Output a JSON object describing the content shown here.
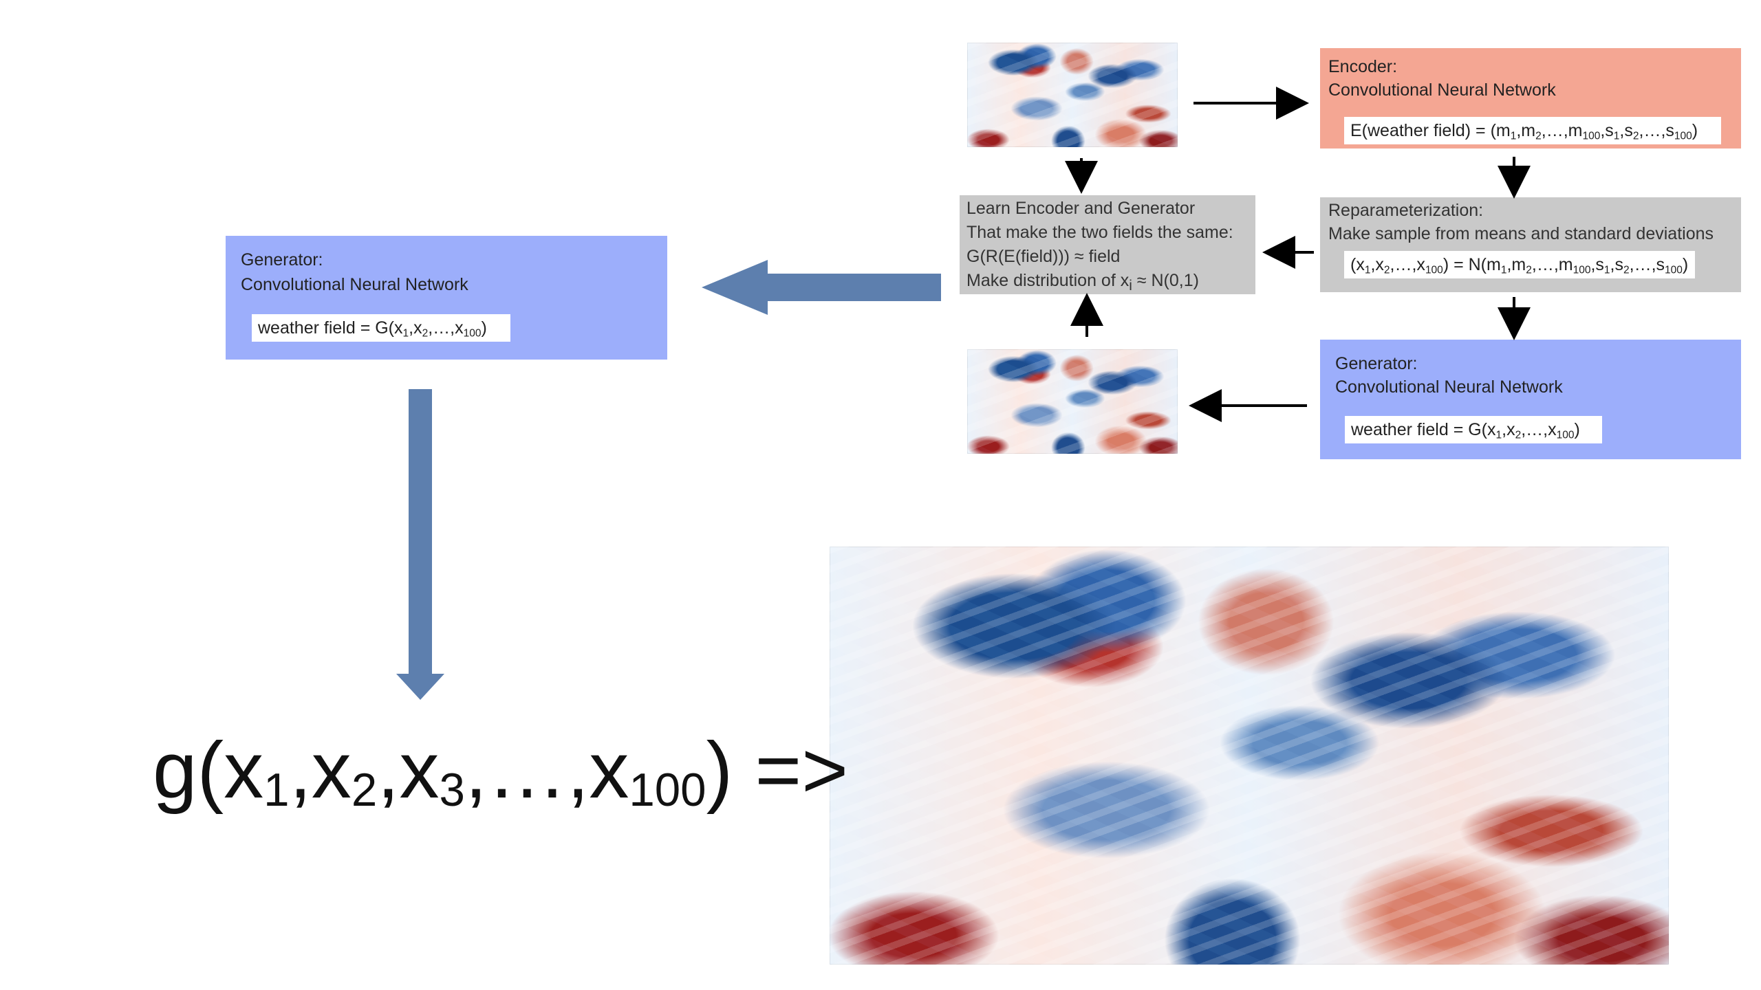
{
  "left_generator": {
    "title": "Generator:",
    "subtitle": "Convolutional Neural Network",
    "formula_prefix": "weather field = G(x",
    "sub1": "1",
    "comma1": ",x",
    "sub2": "2",
    "tail": ",…,x",
    "sub100": "100",
    "close": ")"
  },
  "encoder": {
    "title": "Encoder:",
    "subtitle": "Convolutional Neural Network",
    "formula_prefix": "E(weather field) = (m",
    "m1": "1",
    "m_comma": ",m",
    "m2": "2",
    "m_tail": ",…,m",
    "m100": "100",
    "s_comma": ",s",
    "s1": "1",
    "s_comma2": ",s",
    "s2": "2",
    "s_tail": ",…,s",
    "s100": "100",
    "close": ")"
  },
  "learn": {
    "line1": "Learn Encoder and Generator",
    "line2": "That make the two fields the same:",
    "line3": "G(R(E(field))) ≈ field",
    "line4_prefix": "Make distribution of x",
    "line4_sub": "i",
    "line4_suffix": " ≈ N(0,1)"
  },
  "reparam": {
    "title": "Reparameterization:",
    "subtitle": "Make sample from means and standard deviations",
    "formula_prefix": "(x",
    "x1": "1",
    "x_comma": ",x",
    "x2": "2",
    "x_tail": ",…,x",
    "x100": "100",
    "equals": ") = N(m",
    "m1": "1",
    "m_comma": ",m",
    "m2": "2",
    "m_tail": ",…,m",
    "m100": "100",
    "s_comma": ",s",
    "s1": "1",
    "s_comma2": ",s",
    "s2": "2",
    "s_tail": ",…,s",
    "s100": "100",
    "close": ")"
  },
  "right_generator": {
    "title": "Generator:",
    "subtitle": "Convolutional Neural Network",
    "formula_prefix": "weather field = G(x",
    "sub1": "1",
    "comma1": ",x",
    "sub2": "2",
    "tail": ",…,x",
    "sub100": "100",
    "close": ")"
  },
  "big_formula": {
    "prefix": "g(x",
    "s1": "1",
    "c1": ",x",
    "s2": "2",
    "c2": ",x",
    "s3": "3",
    "c3": ",…,x",
    "s100": "100",
    "suffix": ") =>"
  },
  "colors": {
    "encoder": "#f4a693",
    "generator": "#9caefb",
    "gray": "#c9c9c9",
    "big_arrow": "#5d7fae"
  }
}
